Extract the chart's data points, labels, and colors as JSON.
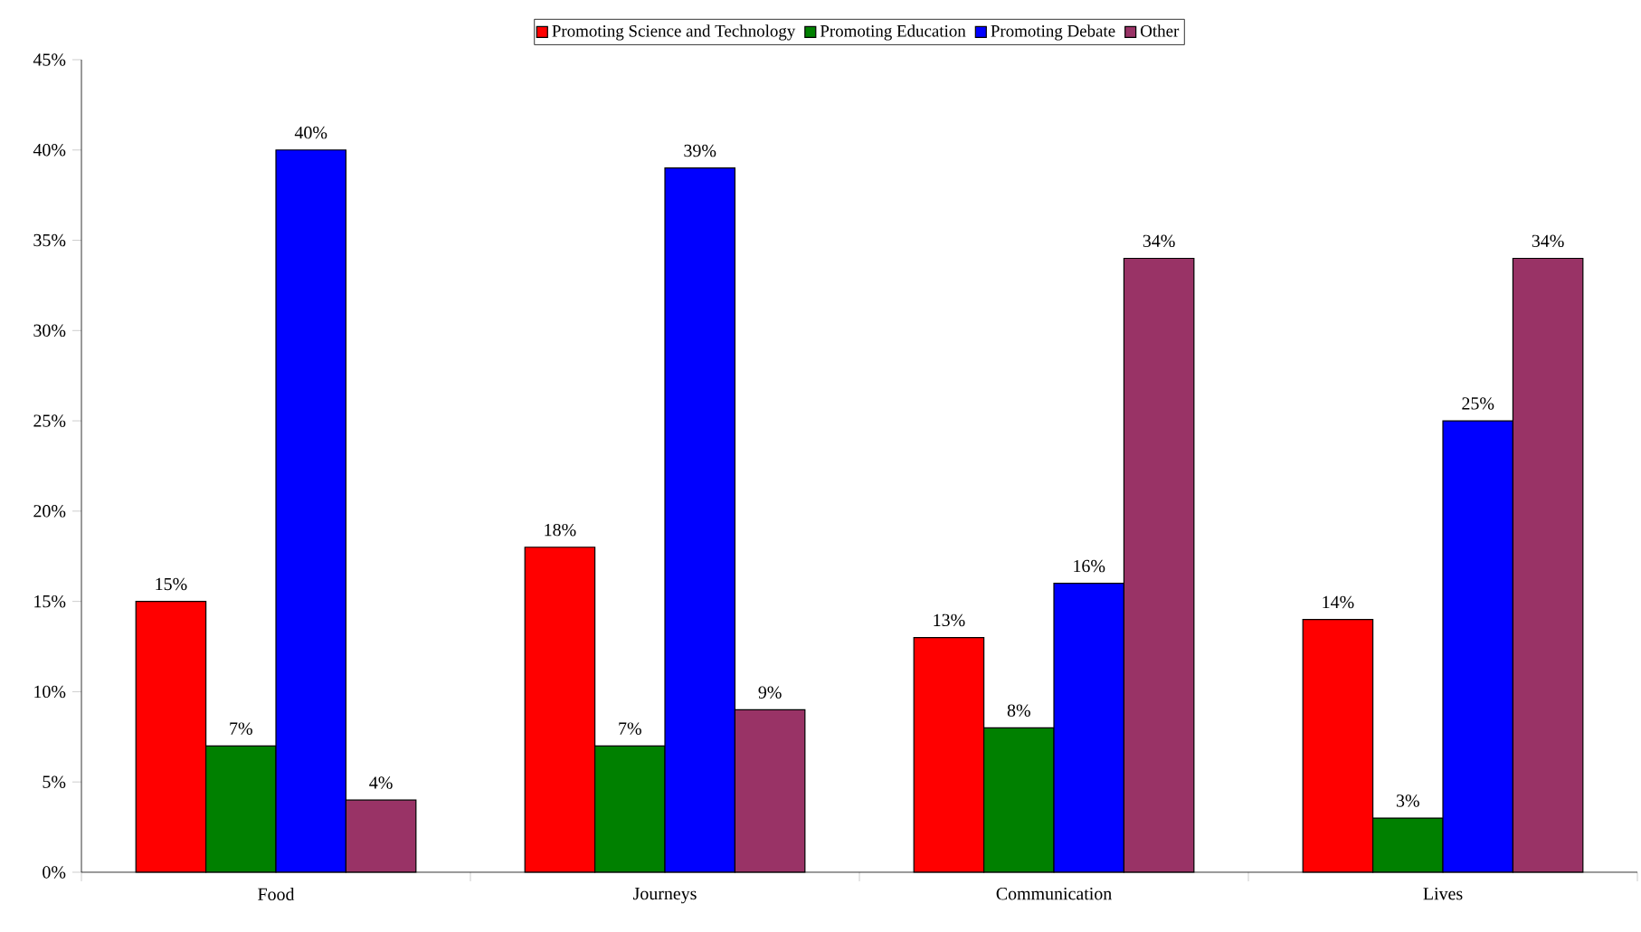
{
  "chart_data": {
    "type": "bar",
    "categories": [
      "Food",
      "Journeys",
      "Communication",
      "Lives"
    ],
    "series": [
      {
        "name": "Promoting Science and Technology",
        "color": "#ff0000",
        "values": [
          15,
          18,
          13,
          14
        ],
        "value_labels": [
          "15%",
          "18%",
          "13%",
          "14%"
        ]
      },
      {
        "name": "Promoting Education",
        "color": "#008000",
        "values": [
          7,
          7,
          8,
          3
        ],
        "value_labels": [
          "7%",
          "7%",
          "8%",
          "3%"
        ]
      },
      {
        "name": "Promoting Debate",
        "color": "#0000ff",
        "values": [
          40,
          39,
          16,
          25
        ],
        "value_labels": [
          "40%",
          "39%",
          "16%",
          "25%"
        ]
      },
      {
        "name": "Other",
        "color": "#993366",
        "values": [
          4,
          9,
          34,
          34
        ],
        "value_labels": [
          "4%",
          "9%",
          "34%",
          "34%"
        ]
      }
    ],
    "ylim": [
      0,
      45
    ],
    "yticks": [
      {
        "value": 0,
        "label": "0%"
      },
      {
        "value": 5,
        "label": "5%"
      },
      {
        "value": 10,
        "label": "10%"
      },
      {
        "value": 15,
        "label": "15%"
      },
      {
        "value": 20,
        "label": "20%"
      },
      {
        "value": 25,
        "label": "25%"
      },
      {
        "value": 30,
        "label": "30%"
      },
      {
        "value": 35,
        "label": "35%"
      },
      {
        "value": 40,
        "label": "40%"
      },
      {
        "value": 45,
        "label": "45%"
      }
    ],
    "grid": false,
    "legend": "top"
  }
}
